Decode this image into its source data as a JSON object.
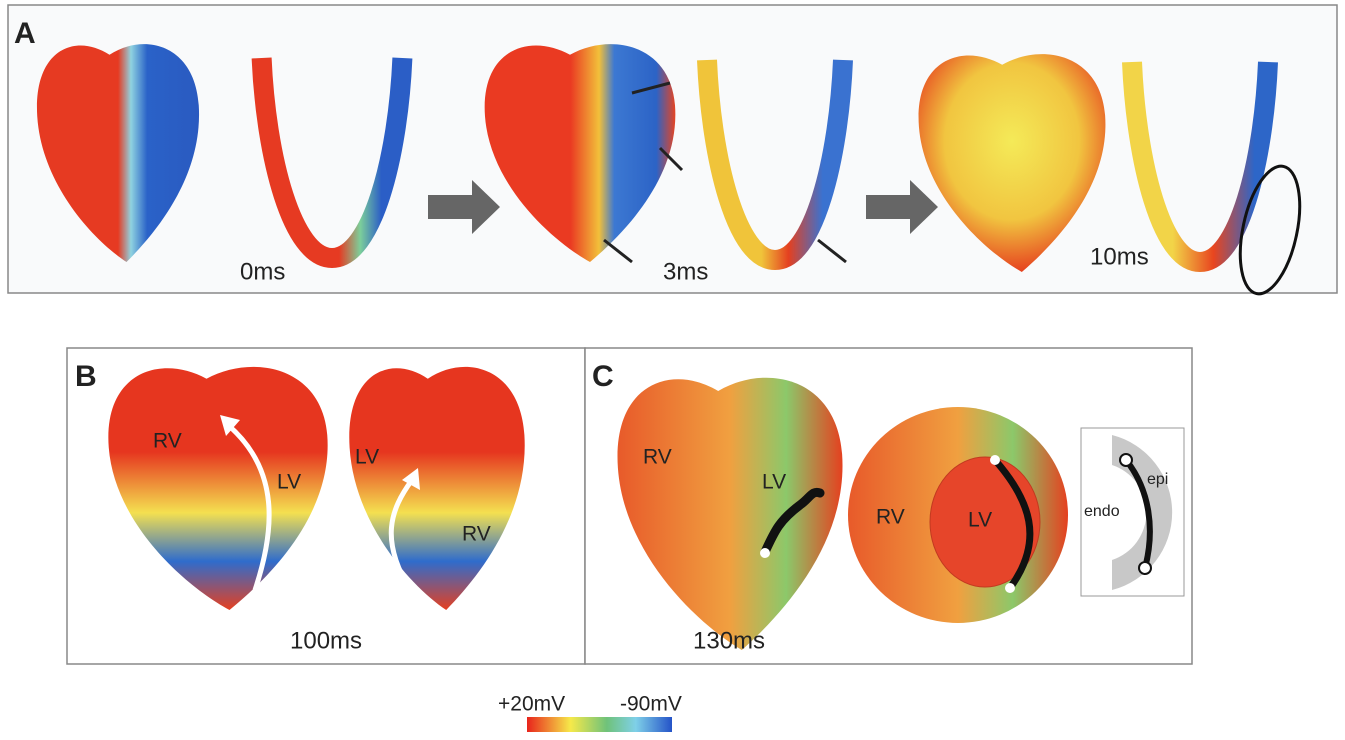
{
  "panels": [
    {
      "label": "A",
      "times": [
        "0ms",
        "3ms",
        "10ms"
      ]
    },
    {
      "label": "B",
      "time": "100ms",
      "annotations": [
        "RV",
        "LV",
        "LV",
        "RV"
      ]
    },
    {
      "label": "C",
      "time": "130ms",
      "annotations": [
        "RV",
        "LV",
        "RV",
        "LV",
        "endo",
        "epi"
      ]
    }
  ],
  "colorbar": {
    "max_label": "+20mV",
    "min_label": "-90mV"
  }
}
